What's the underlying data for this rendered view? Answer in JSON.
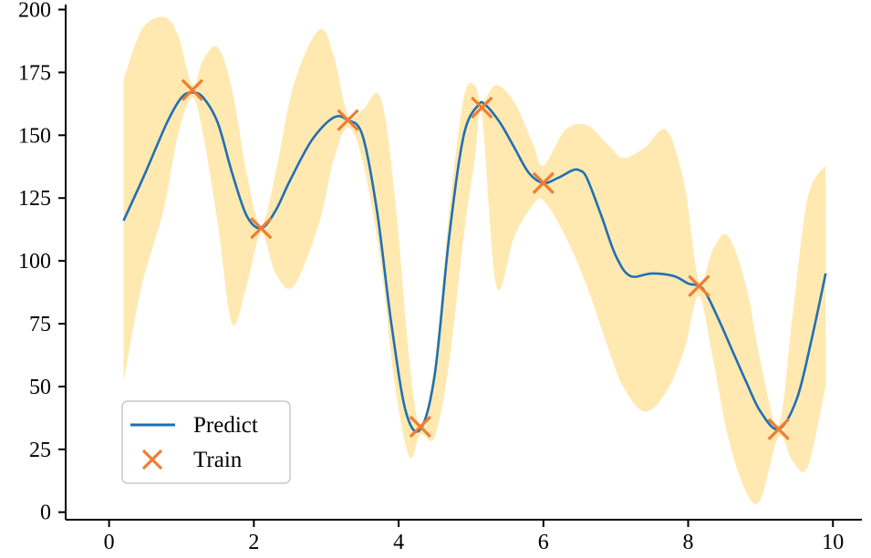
{
  "chart_data": {
    "type": "line",
    "xlim": [
      -0.6,
      10.4
    ],
    "ylim": [
      -3,
      202
    ],
    "xticks": [
      0,
      2,
      4,
      6,
      8,
      10
    ],
    "yticks": [
      0,
      25,
      50,
      75,
      100,
      125,
      150,
      175,
      200
    ],
    "xtick_labels": [
      "0",
      "2",
      "4",
      "6",
      "8",
      "10"
    ],
    "ytick_labels": [
      "0",
      "25",
      "50",
      "75",
      "100",
      "125",
      "150",
      "175",
      "200"
    ],
    "grid": false,
    "legend_position": "lower-left",
    "series": [
      {
        "name": "Predict",
        "kind": "line",
        "color": "#1f6fb4",
        "x": [
          0.2,
          0.5,
          0.8,
          1.0,
          1.15,
          1.3,
          1.5,
          1.7,
          1.9,
          2.1,
          2.3,
          2.5,
          2.8,
          3.1,
          3.3,
          3.5,
          3.7,
          3.9,
          4.1,
          4.3,
          4.5,
          4.7,
          4.9,
          5.1,
          5.2,
          5.4,
          5.6,
          5.8,
          6.0,
          6.2,
          6.4,
          6.5,
          6.6,
          6.8,
          7.0,
          7.2,
          7.5,
          7.8,
          8.0,
          8.2,
          8.4,
          8.6,
          8.8,
          9.0,
          9.25,
          9.5,
          9.7,
          9.9
        ],
        "y": [
          116,
          135,
          155,
          165,
          167,
          165,
          155,
          135,
          118,
          113,
          120,
          132,
          148,
          157,
          156,
          150,
          120,
          75,
          40,
          33,
          55,
          110,
          150,
          162,
          162,
          155,
          145,
          135,
          131,
          133,
          136,
          136,
          133,
          118,
          102,
          94,
          95,
          94,
          91,
          89,
          78,
          65,
          52,
          40,
          33,
          45,
          68,
          95
        ]
      },
      {
        "name": "Train",
        "kind": "scatter",
        "color": "#ee7d34",
        "x": [
          1.15,
          2.1,
          3.3,
          4.3,
          5.15,
          6.0,
          8.15,
          9.25
        ],
        "y": [
          168,
          113,
          156,
          34,
          161,
          131,
          90,
          33
        ]
      }
    ],
    "confidence_band": {
      "color": "#ffe9b0",
      "x": [
        0.2,
        0.45,
        0.75,
        0.95,
        1.15,
        1.3,
        1.5,
        1.7,
        1.9,
        2.1,
        2.3,
        2.55,
        2.9,
        3.1,
        3.3,
        3.5,
        3.75,
        3.95,
        4.15,
        4.3,
        4.5,
        4.7,
        4.9,
        5.05,
        5.15,
        5.35,
        5.6,
        5.85,
        6.0,
        6.3,
        6.6,
        6.9,
        7.1,
        7.4,
        7.7,
        7.95,
        8.15,
        8.35,
        8.55,
        8.8,
        9.0,
        9.25,
        9.45,
        9.65,
        9.9
      ],
      "upper": [
        172,
        192,
        197,
        190,
        170,
        180,
        185,
        168,
        135,
        114,
        135,
        170,
        192,
        182,
        158,
        160,
        165,
        125,
        60,
        35,
        60,
        120,
        165,
        170,
        163,
        170,
        163,
        147,
        138,
        152,
        154,
        146,
        141,
        145,
        152,
        130,
        92,
        105,
        110,
        90,
        60,
        35,
        80,
        125,
        138
      ],
      "lower": [
        52,
        90,
        120,
        150,
        165,
        150,
        115,
        75,
        90,
        111,
        95,
        90,
        115,
        140,
        153,
        140,
        100,
        50,
        22,
        31,
        30,
        60,
        110,
        140,
        158,
        90,
        110,
        122,
        124,
        110,
        90,
        65,
        50,
        40,
        48,
        65,
        86,
        60,
        30,
        8,
        5,
        30,
        20,
        18,
        50
      ]
    }
  }
}
